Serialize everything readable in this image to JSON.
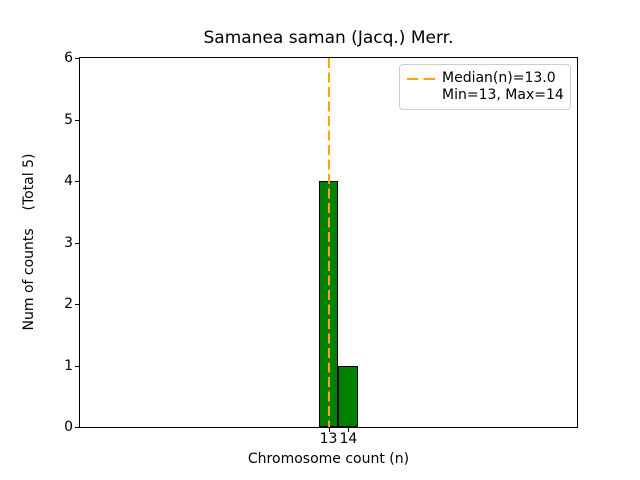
{
  "figure": {
    "title": "Samanea saman (Jacq.) Merr.",
    "x_axis": {
      "label": "Chromosome count (n)"
    },
    "y_axis": {
      "label": "Num of counts    (Total 5)"
    },
    "legend": {
      "median_label": "Median(n)=13.0",
      "minmax_label": "Min=13, Max=14"
    }
  },
  "colors": {
    "background": "#ffffff",
    "bar_fill": "#008000",
    "bar_edge": "#000000",
    "median_line": "#ffa500",
    "axes_spine": "#000000",
    "legend_border": "#cccccc",
    "text": "#000000"
  },
  "chart_data": {
    "type": "bar",
    "title": "Samanea saman (Jacq.) Merr.",
    "xlabel": "Chromosome count (n)",
    "ylabel": "Num of counts    (Total 5)",
    "categories": [
      13,
      14
    ],
    "values": [
      4,
      1
    ],
    "bar_width": 1,
    "total_counts": 5,
    "median_n": 13.0,
    "min_n": 13,
    "max_n": 14,
    "xlim": [
      0.5,
      25.5
    ],
    "ylim": [
      0,
      6
    ],
    "xticks": [
      13,
      14
    ],
    "yticks": [
      0,
      1,
      2,
      3,
      4,
      5,
      6
    ],
    "grid": false,
    "legend_position": "upper right"
  }
}
